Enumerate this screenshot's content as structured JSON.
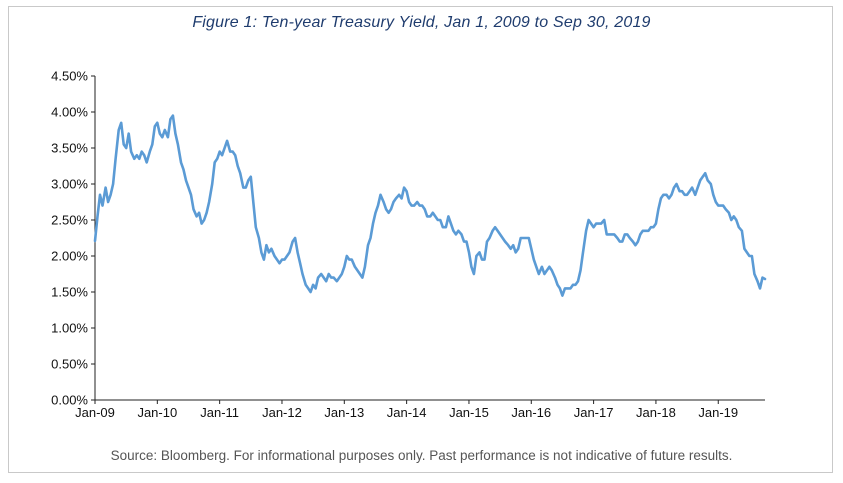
{
  "header": {
    "title": "Figure 1: Ten-year Treasury Yield, Jan 1, 2009 to Sep 30, 2019"
  },
  "footer": {
    "source": "Source: Bloomberg. For informational purposes only. Past performance is not indicative of future results."
  },
  "colors": {
    "line": "#5b9bd5",
    "title": "#1f3c6e",
    "axis": "#222222"
  },
  "chart_data": {
    "type": "line",
    "title": "Figure 1: Ten-year Treasury Yield, Jan 1, 2009 to Sep 30, 2019",
    "xlabel": "",
    "ylabel": "",
    "ylim": [
      0,
      4.5
    ],
    "xlim": [
      2009.0,
      2019.75
    ],
    "y_ticks": [
      0,
      0.5,
      1.0,
      1.5,
      2.0,
      2.5,
      3.0,
      3.5,
      4.0,
      4.5
    ],
    "y_tick_labels": [
      "0.00%",
      "0.50%",
      "1.00%",
      "1.50%",
      "2.00%",
      "2.50%",
      "3.00%",
      "3.50%",
      "4.00%",
      "4.50%"
    ],
    "x_ticks": [
      2009,
      2010,
      2011,
      2012,
      2013,
      2014,
      2015,
      2016,
      2017,
      2018,
      2019
    ],
    "x_tick_labels": [
      "Jan-09",
      "Jan-10",
      "Jan-11",
      "Jan-12",
      "Jan-13",
      "Jan-14",
      "Jan-15",
      "Jan-16",
      "Jan-17",
      "Jan-18",
      "Jan-19"
    ],
    "legend": "none",
    "grid": false,
    "series": [
      {
        "name": "Ten-year Treasury Yield (%)",
        "x": [
          2009.0,
          2009.04,
          2009.08,
          2009.12,
          2009.17,
          2009.21,
          2009.25,
          2009.29,
          2009.33,
          2009.38,
          2009.42,
          2009.46,
          2009.5,
          2009.54,
          2009.58,
          2009.63,
          2009.67,
          2009.71,
          2009.75,
          2009.79,
          2009.83,
          2009.88,
          2009.92,
          2009.96,
          2010.0,
          2010.04,
          2010.08,
          2010.12,
          2010.17,
          2010.21,
          2010.25,
          2010.29,
          2010.33,
          2010.38,
          2010.42,
          2010.46,
          2010.5,
          2010.54,
          2010.58,
          2010.63,
          2010.67,
          2010.71,
          2010.75,
          2010.79,
          2010.83,
          2010.88,
          2010.92,
          2010.96,
          2011.0,
          2011.04,
          2011.08,
          2011.12,
          2011.17,
          2011.21,
          2011.25,
          2011.29,
          2011.33,
          2011.38,
          2011.42,
          2011.46,
          2011.5,
          2011.54,
          2011.58,
          2011.63,
          2011.67,
          2011.71,
          2011.75,
          2011.79,
          2011.83,
          2011.88,
          2011.92,
          2011.96,
          2012.0,
          2012.04,
          2012.08,
          2012.12,
          2012.17,
          2012.21,
          2012.25,
          2012.29,
          2012.33,
          2012.38,
          2012.42,
          2012.46,
          2012.5,
          2012.54,
          2012.58,
          2012.63,
          2012.67,
          2012.71,
          2012.75,
          2012.79,
          2012.83,
          2012.88,
          2012.92,
          2012.96,
          2013.0,
          2013.04,
          2013.08,
          2013.12,
          2013.17,
          2013.21,
          2013.25,
          2013.29,
          2013.33,
          2013.38,
          2013.42,
          2013.46,
          2013.5,
          2013.54,
          2013.58,
          2013.63,
          2013.67,
          2013.71,
          2013.75,
          2013.79,
          2013.83,
          2013.88,
          2013.92,
          2013.96,
          2014.0,
          2014.04,
          2014.08,
          2014.12,
          2014.17,
          2014.21,
          2014.25,
          2014.29,
          2014.33,
          2014.38,
          2014.42,
          2014.46,
          2014.5,
          2014.54,
          2014.58,
          2014.63,
          2014.67,
          2014.71,
          2014.75,
          2014.79,
          2014.83,
          2014.88,
          2014.92,
          2014.96,
          2015.0,
          2015.04,
          2015.08,
          2015.12,
          2015.17,
          2015.21,
          2015.25,
          2015.29,
          2015.33,
          2015.38,
          2015.42,
          2015.46,
          2015.5,
          2015.54,
          2015.58,
          2015.63,
          2015.67,
          2015.71,
          2015.75,
          2015.79,
          2015.83,
          2015.88,
          2015.92,
          2015.96,
          2016.0,
          2016.04,
          2016.08,
          2016.12,
          2016.17,
          2016.21,
          2016.25,
          2016.29,
          2016.33,
          2016.38,
          2016.42,
          2016.46,
          2016.5,
          2016.54,
          2016.58,
          2016.63,
          2016.67,
          2016.71,
          2016.75,
          2016.79,
          2016.83,
          2016.88,
          2016.92,
          2016.96,
          2017.0,
          2017.04,
          2017.08,
          2017.12,
          2017.17,
          2017.21,
          2017.25,
          2017.29,
          2017.33,
          2017.38,
          2017.42,
          2017.46,
          2017.5,
          2017.54,
          2017.58,
          2017.63,
          2017.67,
          2017.71,
          2017.75,
          2017.79,
          2017.83,
          2017.88,
          2017.92,
          2017.96,
          2018.0,
          2018.04,
          2018.08,
          2018.12,
          2018.17,
          2018.21,
          2018.25,
          2018.29,
          2018.33,
          2018.38,
          2018.42,
          2018.46,
          2018.5,
          2018.54,
          2018.58,
          2018.63,
          2018.67,
          2018.71,
          2018.75,
          2018.79,
          2018.83,
          2018.88,
          2018.92,
          2018.96,
          2019.0,
          2019.04,
          2019.08,
          2019.12,
          2019.17,
          2019.21,
          2019.25,
          2019.29,
          2019.33,
          2019.38,
          2019.42,
          2019.46,
          2019.5,
          2019.54,
          2019.58,
          2019.63,
          2019.67,
          2019.71,
          2019.75
        ],
        "values": [
          2.21,
          2.55,
          2.85,
          2.7,
          2.95,
          2.75,
          2.85,
          3.0,
          3.35,
          3.75,
          3.85,
          3.55,
          3.5,
          3.7,
          3.45,
          3.35,
          3.4,
          3.35,
          3.45,
          3.4,
          3.3,
          3.45,
          3.55,
          3.8,
          3.85,
          3.7,
          3.65,
          3.75,
          3.65,
          3.9,
          3.95,
          3.7,
          3.55,
          3.3,
          3.2,
          3.05,
          2.95,
          2.85,
          2.65,
          2.55,
          2.6,
          2.45,
          2.5,
          2.6,
          2.75,
          3.0,
          3.3,
          3.35,
          3.45,
          3.4,
          3.5,
          3.6,
          3.45,
          3.45,
          3.4,
          3.25,
          3.15,
          2.95,
          2.95,
          3.05,
          3.1,
          2.75,
          2.4,
          2.25,
          2.05,
          1.95,
          2.15,
          2.05,
          2.1,
          2.0,
          1.95,
          1.9,
          1.95,
          1.95,
          2.0,
          2.05,
          2.2,
          2.25,
          2.05,
          1.9,
          1.75,
          1.6,
          1.55,
          1.5,
          1.6,
          1.55,
          1.7,
          1.75,
          1.7,
          1.65,
          1.75,
          1.7,
          1.7,
          1.65,
          1.7,
          1.75,
          1.85,
          2.0,
          1.95,
          1.95,
          1.85,
          1.8,
          1.75,
          1.7,
          1.85,
          2.15,
          2.25,
          2.45,
          2.6,
          2.7,
          2.85,
          2.75,
          2.65,
          2.6,
          2.65,
          2.75,
          2.8,
          2.85,
          2.8,
          2.95,
          2.9,
          2.75,
          2.7,
          2.7,
          2.75,
          2.7,
          2.7,
          2.65,
          2.55,
          2.55,
          2.6,
          2.55,
          2.5,
          2.5,
          2.4,
          2.4,
          2.55,
          2.45,
          2.35,
          2.3,
          2.35,
          2.3,
          2.2,
          2.2,
          2.05,
          1.85,
          1.75,
          2.0,
          2.05,
          1.95,
          1.95,
          2.2,
          2.25,
          2.35,
          2.4,
          2.35,
          2.3,
          2.25,
          2.2,
          2.15,
          2.1,
          2.15,
          2.05,
          2.1,
          2.25,
          2.25,
          2.25,
          2.25,
          2.1,
          1.95,
          1.85,
          1.75,
          1.85,
          1.75,
          1.8,
          1.85,
          1.8,
          1.7,
          1.6,
          1.55,
          1.45,
          1.55,
          1.55,
          1.55,
          1.6,
          1.6,
          1.65,
          1.8,
          2.05,
          2.35,
          2.5,
          2.45,
          2.4,
          2.45,
          2.45,
          2.45,
          2.5,
          2.3,
          2.3,
          2.3,
          2.3,
          2.25,
          2.2,
          2.2,
          2.3,
          2.3,
          2.25,
          2.2,
          2.15,
          2.2,
          2.3,
          2.35,
          2.35,
          2.35,
          2.4,
          2.4,
          2.45,
          2.65,
          2.8,
          2.85,
          2.85,
          2.8,
          2.85,
          2.95,
          3.0,
          2.9,
          2.9,
          2.85,
          2.85,
          2.9,
          2.95,
          2.85,
          2.95,
          3.05,
          3.1,
          3.15,
          3.05,
          3.0,
          2.85,
          2.75,
          2.7,
          2.7,
          2.7,
          2.65,
          2.6,
          2.5,
          2.55,
          2.5,
          2.4,
          2.35,
          2.1,
          2.05,
          2.0,
          2.0,
          1.75,
          1.65,
          1.55,
          1.7,
          1.68
        ]
      }
    ]
  }
}
